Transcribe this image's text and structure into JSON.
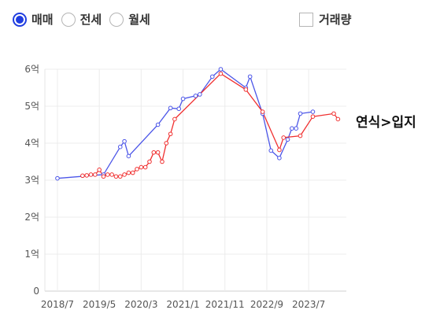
{
  "controls": {
    "radios": [
      {
        "label": "매매",
        "selected": true
      },
      {
        "label": "전세",
        "selected": false
      },
      {
        "label": "월세",
        "selected": false
      }
    ],
    "checkbox": {
      "label": "거래량",
      "checked": false
    }
  },
  "side_label": "연식>입지",
  "colors": {
    "blue": "#4b55e8",
    "red": "#f03030",
    "selected": "#1f3de0"
  },
  "chart_data": {
    "type": "line",
    "x_ticks": [
      "2018/7",
      "2019/5",
      "2020/3",
      "2021/1",
      "2021/11",
      "2022/9",
      "2023/7"
    ],
    "y_ticks": [
      "0",
      "1억",
      "2억",
      "3억",
      "4억",
      "5억",
      "6억"
    ],
    "ylim": [
      0,
      6
    ],
    "xlim": [
      "2018-04",
      "2024-04"
    ],
    "grid": true,
    "series": [
      {
        "color": "blue",
        "points": [
          [
            "2018-07",
            3.05
          ],
          [
            "2019-06",
            3.15
          ],
          [
            "2019-10",
            3.9
          ],
          [
            "2019-11",
            4.05
          ],
          [
            "2019-12",
            3.65
          ],
          [
            "2020-07",
            4.5
          ],
          [
            "2020-10",
            4.95
          ],
          [
            "2020-12",
            4.93
          ],
          [
            "2021-01",
            5.2
          ],
          [
            "2021-04",
            5.28
          ],
          [
            "2021-05",
            5.32
          ],
          [
            "2021-08",
            5.8
          ],
          [
            "2021-10",
            6.0
          ],
          [
            "2022-04",
            5.5
          ],
          [
            "2022-05",
            5.8
          ],
          [
            "2022-08",
            4.8
          ],
          [
            "2022-10",
            3.8
          ],
          [
            "2022-12",
            3.6
          ],
          [
            "2023-02",
            4.1
          ],
          [
            "2023-03",
            4.4
          ],
          [
            "2023-04",
            4.4
          ],
          [
            "2023-05",
            4.8
          ],
          [
            "2023-08",
            4.85
          ]
        ]
      },
      {
        "color": "red",
        "points": [
          [
            "2019-01",
            3.12
          ],
          [
            "2019-02",
            3.13
          ],
          [
            "2019-03",
            3.15
          ],
          [
            "2019-04",
            3.15
          ],
          [
            "2019-05",
            3.28
          ],
          [
            "2019-06",
            3.1
          ],
          [
            "2019-07",
            3.15
          ],
          [
            "2019-08",
            3.15
          ],
          [
            "2019-09",
            3.1
          ],
          [
            "2019-10",
            3.1
          ],
          [
            "2019-11",
            3.15
          ],
          [
            "2019-12",
            3.2
          ],
          [
            "2020-01",
            3.2
          ],
          [
            "2020-02",
            3.3
          ],
          [
            "2020-03",
            3.35
          ],
          [
            "2020-04",
            3.35
          ],
          [
            "2020-05",
            3.5
          ],
          [
            "2020-06",
            3.75
          ],
          [
            "2020-07",
            3.75
          ],
          [
            "2020-08",
            3.5
          ],
          [
            "2020-09",
            4.0
          ],
          [
            "2020-10",
            4.25
          ],
          [
            "2020-11",
            4.65
          ],
          [
            "2021-10",
            5.88
          ],
          [
            "2022-04",
            5.45
          ],
          [
            "2022-08",
            4.85
          ],
          [
            "2022-12",
            3.82
          ],
          [
            "2023-01",
            4.15
          ],
          [
            "2023-05",
            4.2
          ],
          [
            "2023-08",
            4.72
          ],
          [
            "2024-01",
            4.8
          ],
          [
            "2024-02",
            4.65
          ]
        ]
      }
    ]
  }
}
